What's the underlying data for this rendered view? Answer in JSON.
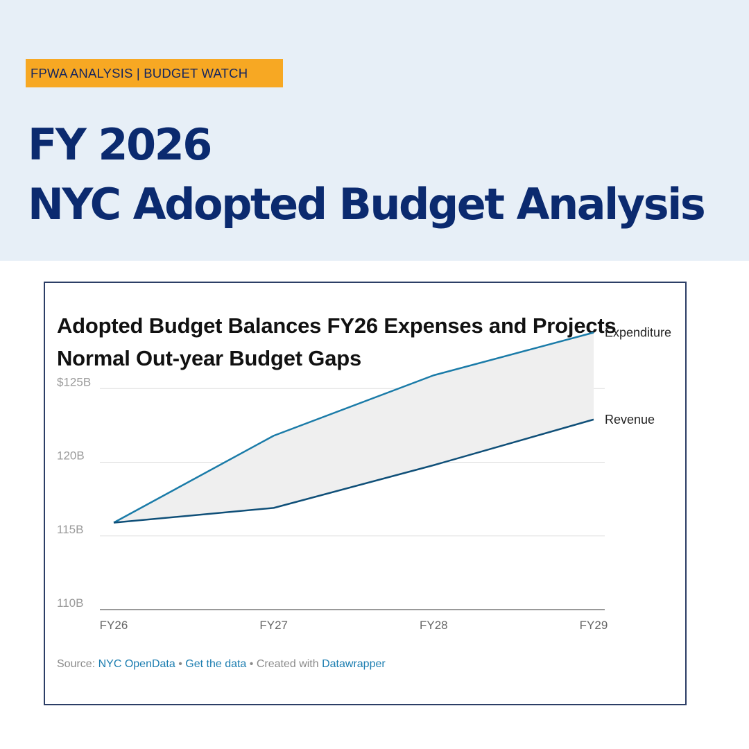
{
  "header": {
    "tag": "FPWA ANALYSIS | BUDGET WATCH",
    "title_line1": "FY 2026",
    "title_line2": "NYC Adopted Budget Analysis"
  },
  "chart_data": {
    "type": "area",
    "title_line1": "Adopted Budget Balances FY26 Expenses and Projects",
    "title_line2": "Normal Out-year Budget Gaps",
    "categories": [
      "FY26",
      "FY27",
      "FY28",
      "FY29"
    ],
    "series": [
      {
        "name": "Expenditure",
        "values": [
          115.9,
          121.8,
          125.9,
          128.8
        ],
        "color": "#1a7ba8"
      },
      {
        "name": "Revenue",
        "values": [
          115.9,
          116.9,
          119.8,
          122.9
        ],
        "color": "#0f4f78"
      }
    ],
    "fill_color": "#efefef",
    "ylim": [
      110,
      130
    ],
    "yticks": [
      110,
      115,
      120,
      125
    ],
    "ytick_labels": [
      "110B",
      "115B",
      "120B",
      "$125B"
    ],
    "grid": true,
    "legend": "inline-right"
  },
  "source": {
    "prefix": "Source: ",
    "source_link": "NYC OpenData",
    "sep1": " • ",
    "data_link": "Get the data",
    "sep2": " • Created with ",
    "tool_link": "Datawrapper"
  }
}
